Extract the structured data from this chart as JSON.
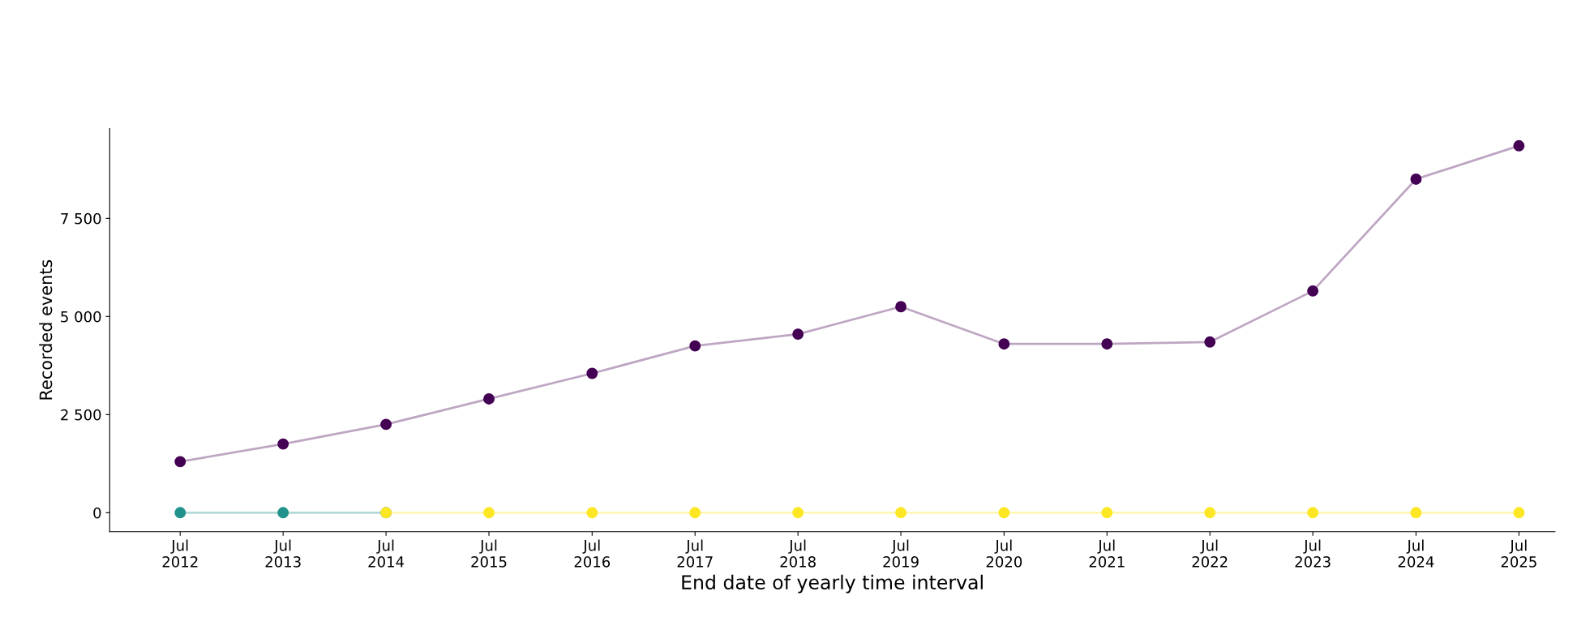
{
  "chart_data": {
    "type": "line",
    "xlabel": "End date of yearly time interval",
    "ylabel": "Recorded events",
    "series": [
      {
        "color": "#440154",
        "x": [
          "2012-07",
          "2013-07",
          "2014-07",
          "2015-07",
          "2016-07",
          "2017-07",
          "2018-07",
          "2019-07",
          "2020-07",
          "2021-07",
          "2022-07",
          "2023-07",
          "2024-07",
          "2025-07"
        ],
        "values": [
          1300,
          1750,
          2250,
          2900,
          3550,
          4250,
          4550,
          5250,
          4300,
          4300,
          4350,
          5650,
          8500,
          9350
        ]
      },
      {
        "color": "#21918c",
        "x": [
          "2012-07",
          "2013-07",
          "2014-07"
        ],
        "values": [
          0,
          0,
          0
        ]
      },
      {
        "color": "#fde725",
        "x": [
          "2014-07",
          "2015-07",
          "2016-07",
          "2017-07",
          "2018-07",
          "2019-07",
          "2020-07",
          "2021-07",
          "2022-07",
          "2023-07",
          "2024-07",
          "2025-07"
        ],
        "values": [
          0,
          0,
          0,
          0,
          0,
          0,
          0,
          0,
          0,
          0,
          0,
          0
        ]
      }
    ],
    "marker": "circle",
    "line_style": "solid",
    "grid": false,
    "xlim": [
      "2011-10-25",
      "2025-11-06"
    ],
    "xticks": [
      {
        "value": "2012-07",
        "label": "Jul\n2012"
      },
      {
        "value": "2013-07",
        "label": "Jul\n2013"
      },
      {
        "value": "2014-07",
        "label": "Jul\n2014"
      },
      {
        "value": "2015-07",
        "label": "Jul\n2015"
      },
      {
        "value": "2016-07",
        "label": "Jul\n2016"
      },
      {
        "value": "2017-07",
        "label": "Jul\n2017"
      },
      {
        "value": "2018-07",
        "label": "Jul\n2018"
      },
      {
        "value": "2019-07",
        "label": "Jul\n2019"
      },
      {
        "value": "2020-07",
        "label": "Jul\n2020"
      },
      {
        "value": "2021-07",
        "label": "Jul\n2021"
      },
      {
        "value": "2022-07",
        "label": "Jul\n2022"
      },
      {
        "value": "2023-07",
        "label": "Jul\n2023"
      },
      {
        "value": "2024-07",
        "label": "Jul\n2024"
      },
      {
        "value": "2025-07",
        "label": "Jul\n2025"
      }
    ],
    "ylim": [
      -485,
      9790
    ],
    "yticks": [
      {
        "value": 0,
        "label": "0"
      },
      {
        "value": 2500,
        "label": "2 500"
      },
      {
        "value": 5000,
        "label": "5 000"
      },
      {
        "value": 7500,
        "label": "7 500"
      }
    ]
  }
}
